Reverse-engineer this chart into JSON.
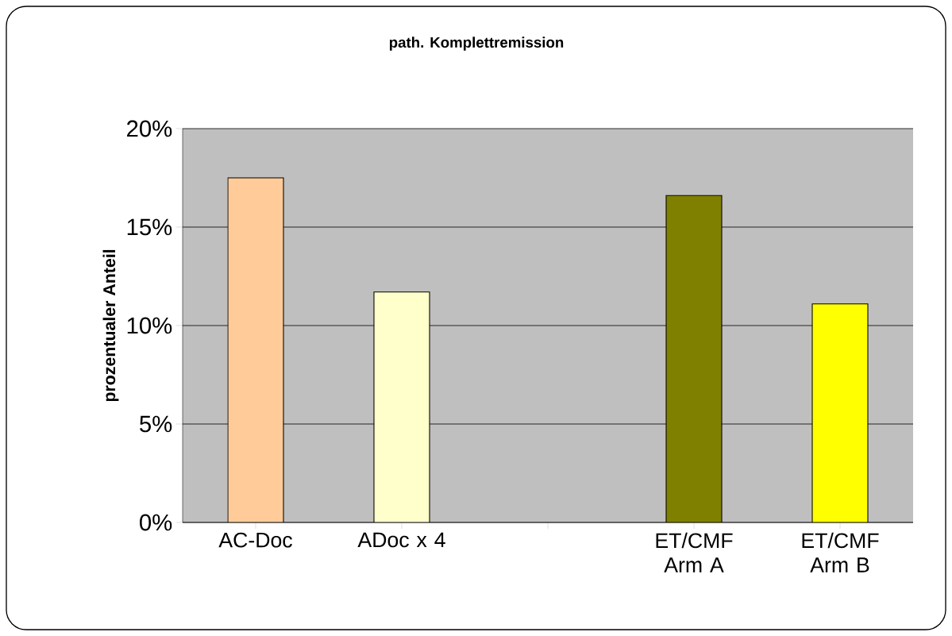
{
  "chart_data": {
    "type": "bar",
    "title": "path. Komplettremission",
    "ylabel": "prozentualer Anteil",
    "categories": [
      "AC-Doc",
      "ADoc x 4",
      null,
      "ET/CMF Arm A",
      "ET/CMF Arm B"
    ],
    "values": [
      17.5,
      11.7,
      null,
      16.6,
      11.1
    ],
    "colors": [
      "#ffcc99",
      "#ffffcc",
      null,
      "#808000",
      "#ffff00"
    ],
    "ylim": [
      0,
      20
    ],
    "yticks": [
      {
        "value": 0,
        "label": "0%"
      },
      {
        "value": 5,
        "label": "5%"
      },
      {
        "value": 10,
        "label": "10%"
      },
      {
        "value": 15,
        "label": "15%"
      },
      {
        "value": 20,
        "label": "20%"
      }
    ],
    "grid": "y"
  }
}
